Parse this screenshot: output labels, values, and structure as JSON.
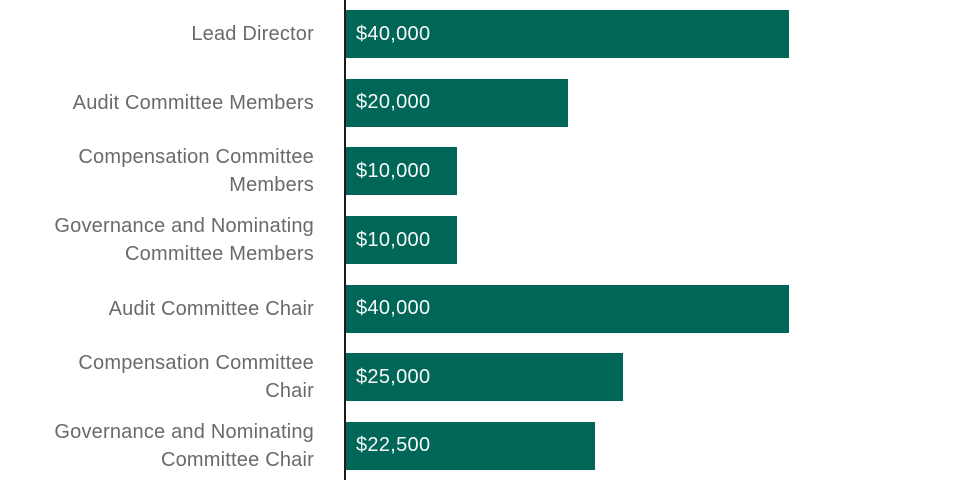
{
  "chart_data": {
    "type": "bar",
    "orientation": "horizontal",
    "title": "",
    "xlabel": "",
    "ylabel": "",
    "xlim": [
      0,
      40000
    ],
    "grid": false,
    "legend": false,
    "categories": [
      "Lead Director",
      "Audit Committee Members",
      "Compensation Committee Members",
      "Governance and Nominating Committee Members",
      "Audit Committee Chair",
      "Compensation Committee Chair",
      "Governance and Nominating Committee Chair"
    ],
    "category_label_lines": [
      [
        "Lead Director"
      ],
      [
        "Audit Committee Members"
      ],
      [
        "Compensation Committee",
        "Members"
      ],
      [
        "Governance and Nominating",
        "Committee Members"
      ],
      [
        "Audit Committee Chair"
      ],
      [
        "Compensation Committee",
        "Chair"
      ],
      [
        "Governance and Nominating",
        "Committee Chair"
      ]
    ],
    "values": [
      40000,
      20000,
      10000,
      10000,
      40000,
      25000,
      22500
    ],
    "value_labels": [
      "$40,000",
      "$20,000",
      "$10,000",
      "$10,000",
      "$40,000",
      "$25,000",
      "$22,500"
    ],
    "colors": {
      "bar_fill": "#006657",
      "value_text": "#f7f9f8",
      "category_text": "#6a6a6a",
      "axis_line": "#1a1a1a",
      "background": "#ffffff"
    }
  }
}
